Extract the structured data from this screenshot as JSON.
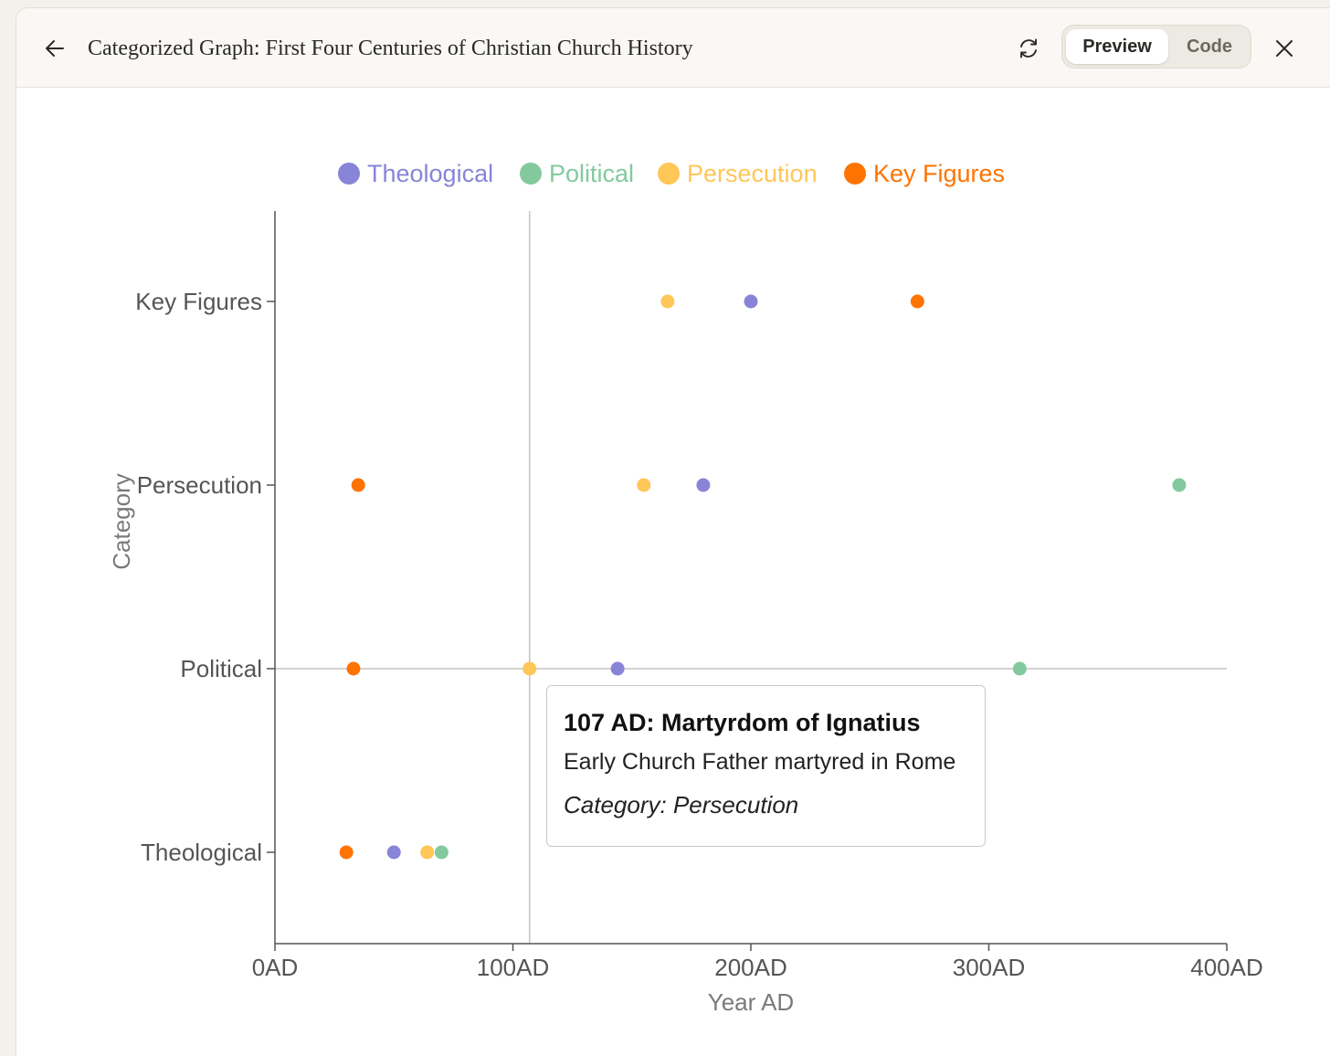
{
  "header": {
    "title": "Categorized Graph: First Four Centuries of Christian Church History",
    "preview_label": "Preview",
    "code_label": "Code",
    "back_icon": "arrow-left-icon",
    "refresh_icon": "refresh-icon",
    "close_icon": "close-icon"
  },
  "chart_data": {
    "type": "scatter",
    "xlabel": "Year AD",
    "ylabel": "Category",
    "xlim": [
      0,
      400
    ],
    "x_ticks": [
      {
        "value": 0,
        "label": "0AD"
      },
      {
        "value": 100,
        "label": "100AD"
      },
      {
        "value": 200,
        "label": "200AD"
      },
      {
        "value": 300,
        "label": "300AD"
      },
      {
        "value": 400,
        "label": "400AD"
      }
    ],
    "categories": [
      "Theological",
      "Political",
      "Persecution",
      "Key Figures"
    ],
    "legend_position": "top-center",
    "series": [
      {
        "name": "Theological",
        "color": "#8884d8",
        "points": [
          {
            "x": 50,
            "y": "Theological"
          },
          {
            "x": 144,
            "y": "Political"
          },
          {
            "x": 180,
            "y": "Persecution"
          },
          {
            "x": 200,
            "y": "Key Figures"
          }
        ]
      },
      {
        "name": "Political",
        "color": "#82ca9d",
        "points": [
          {
            "x": 70,
            "y": "Theological"
          },
          {
            "x": 313,
            "y": "Political"
          },
          {
            "x": 380,
            "y": "Persecution"
          }
        ]
      },
      {
        "name": "Persecution",
        "color": "#ffc658",
        "points": [
          {
            "x": 64,
            "y": "Theological"
          },
          {
            "x": 107,
            "y": "Political"
          },
          {
            "x": 155,
            "y": "Persecution"
          },
          {
            "x": 165,
            "y": "Key Figures"
          }
        ]
      },
      {
        "name": "Key Figures",
        "color": "#ff7300",
        "points": [
          {
            "x": 30,
            "y": "Theological"
          },
          {
            "x": 33,
            "y": "Political"
          },
          {
            "x": 35,
            "y": "Persecution"
          },
          {
            "x": 270,
            "y": "Key Figures"
          }
        ]
      }
    ],
    "crosshair": {
      "x": 107,
      "y": "Political"
    },
    "tooltip": {
      "title": "107 AD: Martyrdom of Ignatius",
      "description": "Early Church Father martyred in Rome",
      "category": "Category: Persecution"
    }
  }
}
